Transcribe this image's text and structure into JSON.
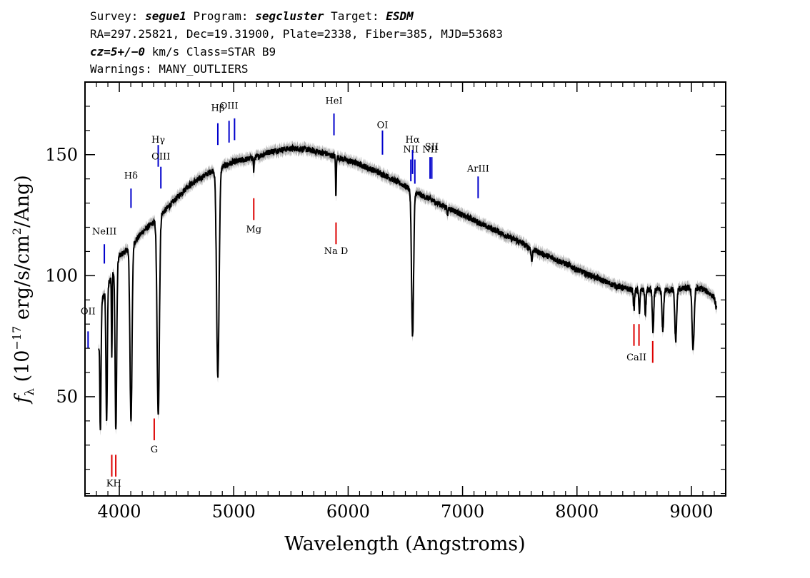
{
  "header": {
    "line1": [
      {
        "text": "Survey: ",
        "italic": false
      },
      {
        "text": "segue1",
        "italic": true
      },
      {
        "text": " Program: ",
        "italic": false
      },
      {
        "text": "segcluster",
        "italic": true
      },
      {
        "text": " Target: ",
        "italic": false
      },
      {
        "text": "ESDM",
        "italic": true
      }
    ],
    "line2": "RA=297.25821, Dec=19.31900, Plate=2338, Fiber=385, MJD=53683",
    "line3": [
      {
        "text": "cz=5+/−0",
        "italic": true
      },
      {
        "text": " km/s Class=STAR B9",
        "italic": false
      }
    ],
    "line4": "Warnings: MANY_OUTLIERS"
  },
  "chart_data": {
    "type": "line",
    "xlabel": "Wavelength (Angstroms)",
    "ylabel": "f_λ (10^-17 erg/s/cm^2/Ang)",
    "ylabel_parts": {
      "symbol": "f",
      "sub": "λ",
      "pre": " (10",
      "exp": "−17",
      "mid": " erg/s/cm",
      "exp2": "2",
      "post": "/Ang)"
    },
    "xlim": [
      3700,
      9300
    ],
    "ylim": [
      9,
      180
    ],
    "x_ticks": [
      4000,
      5000,
      6000,
      7000,
      8000,
      9000
    ],
    "y_ticks": [
      50,
      100,
      150
    ],
    "x_ticks_minor": [
      3800,
      3900,
      4100,
      4200,
      4300,
      4400,
      4500,
      4600,
      4700,
      4800,
      4900,
      5100,
      5200,
      5300,
      5400,
      5500,
      5600,
      5700,
      5800,
      5900,
      6100,
      6200,
      6300,
      6400,
      6500,
      6600,
      6700,
      6800,
      6900,
      7100,
      7200,
      7300,
      7400,
      7500,
      7600,
      7700,
      7800,
      7900,
      8100,
      8200,
      8300,
      8400,
      8500,
      8600,
      8700,
      8800,
      8900,
      9100,
      9200
    ],
    "y_ticks_minor": [
      10,
      20,
      30,
      40,
      60,
      70,
      80,
      90,
      110,
      120,
      130,
      140,
      160,
      170
    ],
    "series": [
      {
        "continuum": [
          [
            3820,
            70
          ],
          [
            3850,
            90
          ],
          [
            3900,
            96
          ],
          [
            3950,
            102
          ],
          [
            4000,
            108
          ],
          [
            4100,
            112
          ],
          [
            4200,
            118
          ],
          [
            4300,
            122
          ],
          [
            4400,
            127
          ],
          [
            4500,
            132
          ],
          [
            4600,
            137
          ],
          [
            4700,
            140
          ],
          [
            4800,
            143
          ],
          [
            4900,
            145
          ],
          [
            5000,
            147
          ],
          [
            5100,
            148
          ],
          [
            5200,
            149
          ],
          [
            5300,
            151
          ],
          [
            5400,
            152
          ],
          [
            5500,
            152.5
          ],
          [
            5600,
            152.5
          ],
          [
            5700,
            151.5
          ],
          [
            5800,
            150.5
          ],
          [
            5900,
            149
          ],
          [
            6000,
            147.5
          ],
          [
            6100,
            146
          ],
          [
            6200,
            144
          ],
          [
            6300,
            142
          ],
          [
            6400,
            139.5
          ],
          [
            6500,
            137
          ],
          [
            6600,
            134
          ],
          [
            6700,
            132
          ],
          [
            6800,
            129.5
          ],
          [
            6900,
            127.5
          ],
          [
            7000,
            125
          ],
          [
            7100,
            123
          ],
          [
            7200,
            120.5
          ],
          [
            7300,
            118.5
          ],
          [
            7400,
            116
          ],
          [
            7500,
            114
          ],
          [
            7600,
            111
          ],
          [
            7700,
            109
          ],
          [
            7800,
            107
          ],
          [
            7900,
            105
          ],
          [
            8000,
            102.5
          ],
          [
            8100,
            100.5
          ],
          [
            8200,
            98.5
          ],
          [
            8300,
            96.5
          ],
          [
            8400,
            95
          ],
          [
            8500,
            94
          ],
          [
            8600,
            94
          ],
          [
            8700,
            94
          ],
          [
            8800,
            94
          ],
          [
            8900,
            94.5
          ],
          [
            9000,
            95
          ],
          [
            9100,
            94.5
          ],
          [
            9150,
            93
          ],
          [
            9200,
            91
          ],
          [
            9220,
            86
          ]
        ],
        "absorption_lines": [
          {
            "center": 3835,
            "depth": 45,
            "width": 5
          },
          {
            "center": 3889,
            "depth": 55,
            "width": 6
          },
          {
            "center": 3934,
            "depth": 35,
            "width": 3
          },
          {
            "center": 3970,
            "depth": 68,
            "width": 7
          },
          {
            "center": 4102,
            "depth": 72,
            "width": 9
          },
          {
            "center": 4340,
            "depth": 82,
            "width": 10
          },
          {
            "center": 4861,
            "depth": 86,
            "width": 11
          },
          {
            "center": 5175,
            "depth": 6,
            "width": 3
          },
          {
            "center": 5893,
            "depth": 17,
            "width": 3
          },
          {
            "center": 6563,
            "depth": 60,
            "width": 9
          },
          {
            "center": 6870,
            "depth": 3,
            "width": 4
          },
          {
            "center": 7605,
            "depth": 5,
            "width": 5
          },
          {
            "center": 8498,
            "depth": 8,
            "width": 5
          },
          {
            "center": 8545,
            "depth": 9,
            "width": 5
          },
          {
            "center": 8598,
            "depth": 10,
            "width": 5
          },
          {
            "center": 8665,
            "depth": 18,
            "width": 6
          },
          {
            "center": 8750,
            "depth": 17,
            "width": 7
          },
          {
            "center": 8863,
            "depth": 21,
            "width": 8
          },
          {
            "center": 9015,
            "depth": 25,
            "width": 9
          }
        ],
        "x_range": [
          3820,
          9220
        ],
        "step": 2,
        "noise_amplitude": 1.2,
        "line_color": "#000000",
        "error_color": "#b0b0b0"
      }
    ],
    "emission_markers": [
      {
        "label": "OII",
        "wavelength": 3727,
        "y_label": 84,
        "y0": 70,
        "y1": 77
      },
      {
        "label": "NeIII",
        "wavelength": 3869,
        "y_label": 117,
        "y0": 105,
        "y1": 113
      },
      {
        "label": "Hδ",
        "wavelength": 4102,
        "y_label": 140,
        "y0": 128,
        "y1": 136
      },
      {
        "label": "Hγ",
        "wavelength": 4340,
        "y_label": 155,
        "y0": 145,
        "y1": 154
      },
      {
        "label": "OIII",
        "wavelength": 4363,
        "y_label": 148,
        "y0": 136,
        "y1": 145
      },
      {
        "label": "Hβ",
        "wavelength": 4861,
        "y_label": 168,
        "y0": 154,
        "y1": 163
      },
      {
        "label": "OIII",
        "wavelength": 4959,
        "y_label": 169,
        "y0": 155,
        "y1": 164
      },
      {
        "label": "",
        "wavelength": 5007,
        "y_label": 169,
        "y0": 156,
        "y1": 165
      },
      {
        "label": "HeI",
        "wavelength": 5876,
        "y_label": 171,
        "y0": 158,
        "y1": 167
      },
      {
        "label": "OI",
        "wavelength": 6300,
        "y_label": 161,
        "y0": 150,
        "y1": 160
      },
      {
        "label": "NII",
        "wavelength": 6548,
        "y_label": 151,
        "y0": 139,
        "y1": 148
      },
      {
        "label": "Hα",
        "wavelength": 6563,
        "y_label": 155,
        "y0": 142,
        "y1": 152
      },
      {
        "label": "",
        "wavelength": 6583,
        "y_label": 151,
        "y0": 138,
        "y1": 148
      },
      {
        "label": "NII",
        "wavelength": 6716,
        "y_label": 151,
        "y0": 140,
        "y1": 149
      },
      {
        "label": "SII",
        "wavelength": 6731,
        "y_label": 152,
        "y0": 140,
        "y1": 149
      },
      {
        "label": "ArIII",
        "wavelength": 7136,
        "y_label": 143,
        "y0": 132,
        "y1": 141
      }
    ],
    "absorption_markers": [
      {
        "label": "KH",
        "wavelengths": [
          3934,
          3969
        ],
        "y0": 17,
        "y1": 26,
        "y_label": 13
      },
      {
        "label": "G",
        "wavelengths": [
          4305
        ],
        "y0": 32,
        "y1": 41,
        "y_label": 27
      },
      {
        "label": "Mg",
        "wavelengths": [
          5175
        ],
        "y0": 123,
        "y1": 132,
        "y_label": 118
      },
      {
        "label": "Na D",
        "wavelengths": [
          5894
        ],
        "y0": 113,
        "y1": 122,
        "y_label": 109
      },
      {
        "label": "CaII",
        "wavelengths": [
          8498,
          8542
        ],
        "y0": 71,
        "y1": 80,
        "y_label": 65
      },
      {
        "label": "",
        "wavelengths": [
          8662
        ],
        "y0": 64,
        "y1": 73,
        "y_label": 60
      }
    ],
    "emission_color": "#0000cc",
    "absorption_color": "#dd0000"
  }
}
